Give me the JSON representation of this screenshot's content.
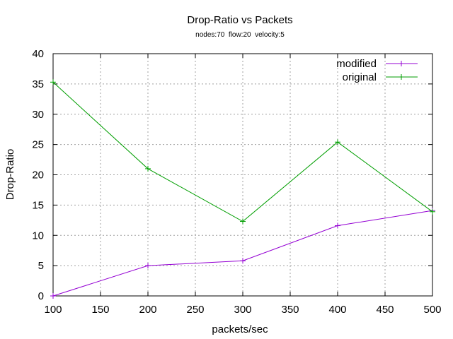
{
  "chart_data": {
    "type": "line",
    "title": "Drop-Ratio vs Packets",
    "subtitle": "nodes:70  flow:20  velocity:5",
    "xlabel": "packets/sec",
    "ylabel": "Drop-Ratio",
    "xlim": [
      100,
      500
    ],
    "ylim": [
      0,
      40
    ],
    "xticks": [
      100,
      150,
      200,
      250,
      300,
      350,
      400,
      450,
      500
    ],
    "yticks": [
      0,
      5,
      10,
      15,
      20,
      25,
      30,
      35,
      40
    ],
    "grid": true,
    "legend_position": "top-right",
    "x": [
      100,
      200,
      300,
      400,
      500
    ],
    "series": [
      {
        "name": "modified",
        "color": "#9400d3",
        "marker": "plus",
        "values": [
          0.0,
          5.0,
          5.8,
          11.6,
          14.1
        ]
      },
      {
        "name": "original",
        "color": "#009e00",
        "marker": "plus",
        "values": [
          35.3,
          21.0,
          12.3,
          25.4,
          13.9
        ]
      }
    ]
  }
}
